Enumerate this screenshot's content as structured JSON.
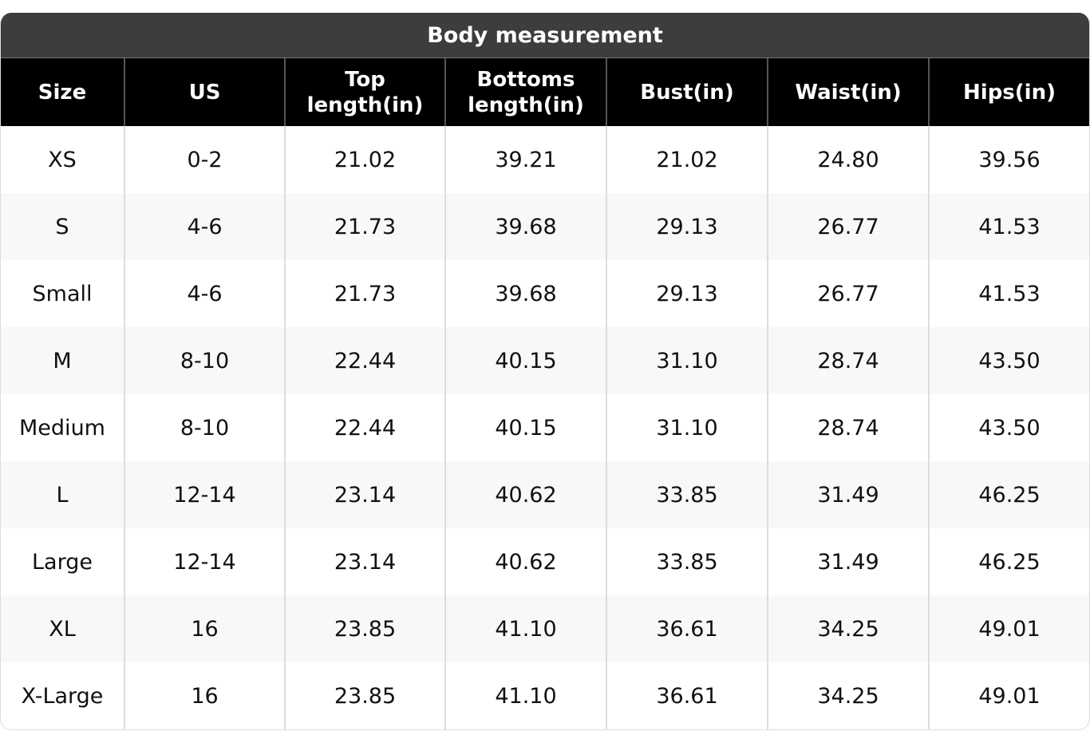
{
  "title": "Body measurement",
  "columns": [
    "Size",
    "US",
    "Top length(in)",
    "Bottoms length(in)",
    "Bust(in)",
    "Waist(in)",
    "Hips(in)"
  ],
  "rows": [
    [
      "XS",
      "0-2",
      "21.02",
      "39.21",
      "21.02",
      "24.80",
      "39.56"
    ],
    [
      "S",
      "4-6",
      "21.73",
      "39.68",
      "29.13",
      "26.77",
      "41.53"
    ],
    [
      "Small",
      "4-6",
      "21.73",
      "39.68",
      "29.13",
      "26.77",
      "41.53"
    ],
    [
      "M",
      "8-10",
      "22.44",
      "40.15",
      "31.10",
      "28.74",
      "43.50"
    ],
    [
      "Medium",
      "8-10",
      "22.44",
      "40.15",
      "31.10",
      "28.74",
      "43.50"
    ],
    [
      "L",
      "12-14",
      "23.14",
      "40.62",
      "33.85",
      "31.49",
      "46.25"
    ],
    [
      "Large",
      "12-14",
      "23.14",
      "40.62",
      "33.85",
      "31.49",
      "46.25"
    ],
    [
      "XL",
      "16",
      "23.85",
      "41.10",
      "36.61",
      "34.25",
      "49.01"
    ],
    [
      "X-Large",
      "16",
      "23.85",
      "41.10",
      "36.61",
      "34.25",
      "49.01"
    ]
  ],
  "colors": {
    "title_bar": "#3d3d3d",
    "header": "#000000",
    "alt_row": "#f8f8f8"
  }
}
